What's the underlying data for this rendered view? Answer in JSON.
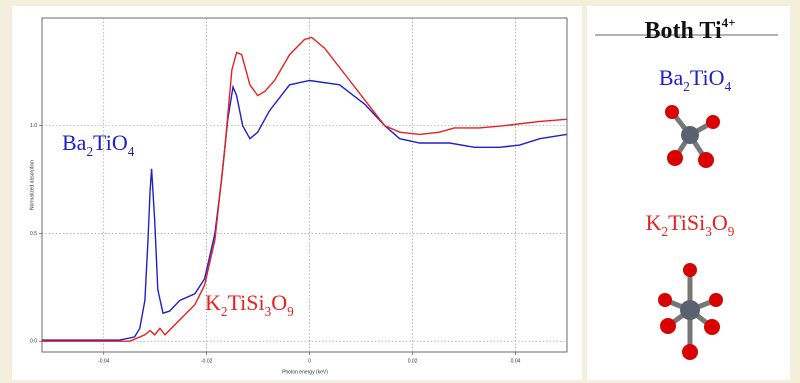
{
  "chart_data": {
    "type": "line",
    "xlabel": "Photon energy (keV)",
    "ylabel": "Normalized absorption",
    "xlim": [
      -0.052,
      0.05
    ],
    "xticks": [
      -0.04,
      -0.02,
      0,
      0.02,
      0.04
    ],
    "ylim": [
      -0.05,
      1.5
    ],
    "yticks": [
      {
        "value": 0,
        "label": "0.0"
      },
      0.5,
      {
        "value": 1,
        "label": "1.0"
      }
    ],
    "grid": true,
    "series": [
      {
        "name": "Ba2TiO4",
        "color": "#2020c8",
        "x": [
          -0.052,
          -0.0369,
          -0.034,
          -0.033,
          -0.032,
          -0.0314,
          -0.031,
          -0.0307,
          -0.0301,
          -0.0295,
          -0.0285,
          -0.0272,
          -0.0252,
          -0.0223,
          -0.0204,
          -0.0184,
          -0.0171,
          -0.0159,
          -0.0149,
          -0.0142,
          -0.013,
          -0.0116,
          -0.0101,
          -0.0078,
          -0.0039,
          0,
          0.0058,
          0.0107,
          0.0146,
          0.0175,
          0.0214,
          0.0272,
          0.032,
          0.0369,
          0.0408,
          0.0447,
          0.0499
        ],
        "values": [
          0.005,
          0.005,
          0.02,
          0.06,
          0.19,
          0.47,
          0.7,
          0.8,
          0.56,
          0.24,
          0.13,
          0.14,
          0.19,
          0.22,
          0.29,
          0.5,
          0.75,
          1.03,
          1.18,
          1.14,
          1.0,
          0.94,
          0.97,
          1.07,
          1.19,
          1.21,
          1.19,
          1.1,
          1.0,
          0.94,
          0.92,
          0.92,
          0.9,
          0.9,
          0.91,
          0.94,
          0.96
        ]
      },
      {
        "name": "K2TiSi3O9",
        "color": "#e82020",
        "x": [
          -0.052,
          -0.0349,
          -0.032,
          -0.031,
          -0.0301,
          -0.0291,
          -0.0281,
          -0.0252,
          -0.0223,
          -0.0204,
          -0.0184,
          -0.0165,
          -0.0151,
          -0.0142,
          -0.0132,
          -0.0116,
          -0.0101,
          -0.0087,
          -0.0068,
          -0.0039,
          -0.001,
          0.0004,
          0.0029,
          0.0068,
          0.0107,
          0.0146,
          0.0175,
          0.0214,
          0.0252,
          0.0281,
          0.033,
          0.0378,
          0.0447,
          0.0499
        ],
        "values": [
          0,
          0,
          0.03,
          0.05,
          0.03,
          0.06,
          0.03,
          0.1,
          0.17,
          0.26,
          0.47,
          0.89,
          1.26,
          1.34,
          1.33,
          1.19,
          1.14,
          1.16,
          1.21,
          1.33,
          1.4,
          1.41,
          1.36,
          1.24,
          1.12,
          1.0,
          0.97,
          0.96,
          0.97,
          0.99,
          0.99,
          1.0,
          1.02,
          1.03
        ]
      }
    ]
  },
  "panel": {
    "title": "Both Ti",
    "title_sup": "4+",
    "labels": [
      "Ba2TiO4",
      "K2TiSi3O9"
    ]
  }
}
